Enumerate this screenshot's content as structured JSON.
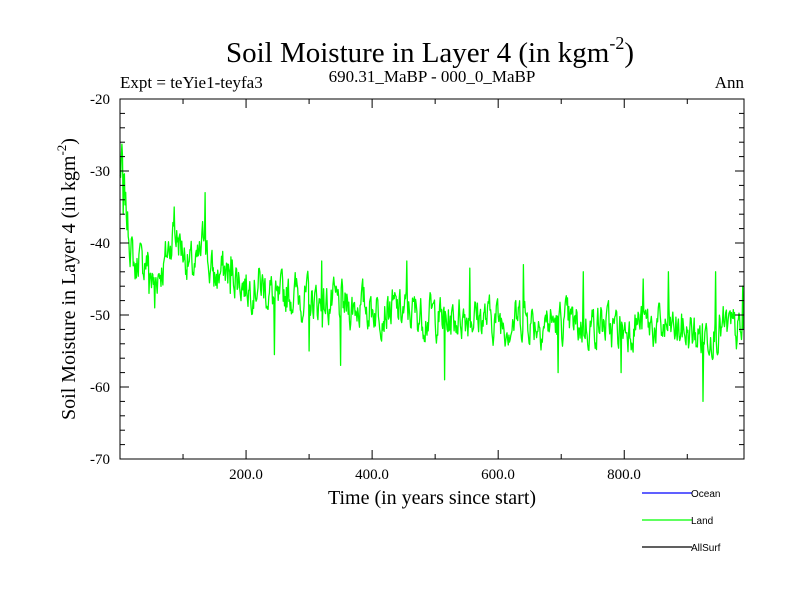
{
  "chart_data": {
    "type": "line",
    "title_main": "Soil Moisture in Layer 4 (in kgm",
    "title_exp": "-2",
    "title_close": ")",
    "subtitle_left": "Expt = teYie1-teyfa3",
    "subtitle_center": "690.31_MaBP - 000_0_MaBP",
    "subtitle_right": "Ann",
    "xlabel": "Time (in years since start)",
    "ylabel_main": "Soil Moisture in Layer 4 (in kgm",
    "ylabel_exp": "-2",
    "ylabel_close": ")",
    "xlim": [
      0,
      990
    ],
    "ylim": [
      -70,
      -20
    ],
    "x_ticks": [
      200,
      400,
      600,
      800
    ],
    "x_tick_labels": [
      "200.0",
      "400.0",
      "600.0",
      "800.0"
    ],
    "y_ticks": [
      -20,
      -30,
      -40,
      -50,
      -60,
      -70
    ],
    "y_tick_labels": [
      "-20",
      "-30",
      "-40",
      "-50",
      "-60",
      "-70"
    ],
    "grid": false,
    "legend_position": "bottom-right, outside plot",
    "series": [
      {
        "name": "Ocean",
        "color": "#0000ff",
        "values": []
      },
      {
        "name": "Land",
        "color": "#00ff00",
        "x_start": 0,
        "x_step": 1,
        "noise_amplitude": 2.4,
        "seed": 7,
        "anchors": [
          [
            0,
            -31
          ],
          [
            3,
            -28.5
          ],
          [
            6,
            -33
          ],
          [
            10,
            -36
          ],
          [
            15,
            -39
          ],
          [
            20,
            -42
          ],
          [
            25,
            -44
          ],
          [
            30,
            -41
          ],
          [
            35,
            -44
          ],
          [
            40,
            -42
          ],
          [
            45,
            -43
          ],
          [
            50,
            -45
          ],
          [
            55,
            -46
          ],
          [
            60,
            -44
          ],
          [
            70,
            -43
          ],
          [
            80,
            -40
          ],
          [
            85,
            -38
          ],
          [
            90,
            -39
          ],
          [
            100,
            -41
          ],
          [
            110,
            -43
          ],
          [
            120,
            -44
          ],
          [
            130,
            -41
          ],
          [
            135,
            -37
          ],
          [
            140,
            -43
          ],
          [
            150,
            -45
          ],
          [
            160,
            -44
          ],
          [
            180,
            -44
          ],
          [
            200,
            -46
          ],
          [
            220,
            -45.5
          ],
          [
            240,
            -47
          ],
          [
            250,
            -49
          ],
          [
            260,
            -47
          ],
          [
            280,
            -47
          ],
          [
            300,
            -48
          ],
          [
            320,
            -48.5
          ],
          [
            340,
            -48.5
          ],
          [
            360,
            -49
          ],
          [
            380,
            -48.5
          ],
          [
            400,
            -49
          ],
          [
            420,
            -49
          ],
          [
            440,
            -49.5
          ],
          [
            460,
            -49.5
          ],
          [
            480,
            -50
          ],
          [
            500,
            -50
          ],
          [
            520,
            -51
          ],
          [
            540,
            -50
          ],
          [
            560,
            -50
          ],
          [
            580,
            -50.5
          ],
          [
            600,
            -50.5
          ],
          [
            620,
            -51
          ],
          [
            640,
            -50
          ],
          [
            660,
            -51
          ],
          [
            680,
            -51
          ],
          [
            700,
            -51
          ],
          [
            720,
            -51.5
          ],
          [
            740,
            -51.5
          ],
          [
            760,
            -51
          ],
          [
            780,
            -52
          ],
          [
            800,
            -52
          ],
          [
            820,
            -51
          ],
          [
            840,
            -51.5
          ],
          [
            860,
            -52
          ],
          [
            880,
            -52
          ],
          [
            900,
            -52.5
          ],
          [
            920,
            -53
          ],
          [
            940,
            -52
          ],
          [
            960,
            -52
          ],
          [
            980,
            -52.5
          ],
          [
            990,
            -53
          ]
        ],
        "extremes": [
          [
            2,
            -28
          ],
          [
            5,
            -36
          ],
          [
            46,
            -47
          ],
          [
            55,
            -49
          ],
          [
            86,
            -35
          ],
          [
            135,
            -33
          ],
          [
            175,
            -47
          ],
          [
            245,
            -55.5
          ],
          [
            300,
            -55
          ],
          [
            320,
            -42.5
          ],
          [
            350,
            -57
          ],
          [
            455,
            -42.5
          ],
          [
            515,
            -59
          ],
          [
            555,
            -43.5
          ],
          [
            640,
            -43
          ],
          [
            695,
            -58
          ],
          [
            735,
            -44
          ],
          [
            795,
            -58
          ],
          [
            830,
            -45
          ],
          [
            870,
            -44
          ],
          [
            925,
            -62
          ],
          [
            945,
            -44
          ],
          [
            988,
            -46
          ]
        ]
      },
      {
        "name": "AllSurf",
        "color": "#000000",
        "values": []
      }
    ]
  }
}
